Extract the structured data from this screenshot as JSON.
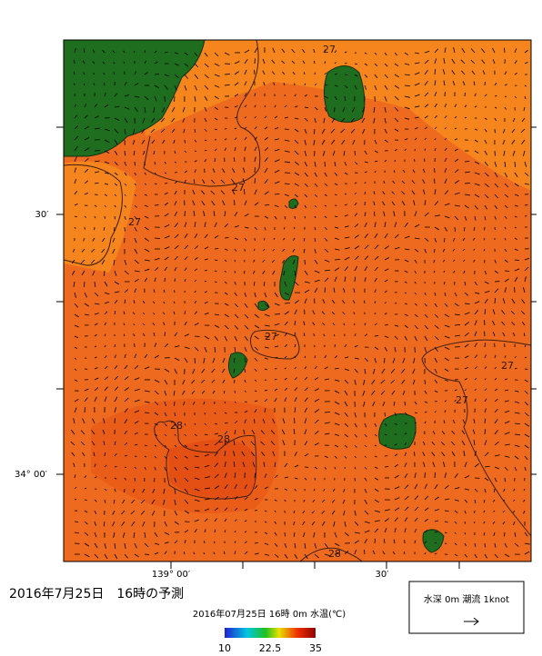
{
  "map": {
    "lat_labels": [
      "30′",
      "34° 00′"
    ],
    "lon_labels": [
      "139° 00′",
      "30′"
    ],
    "contour_labels": [
      "27",
      "27",
      "27",
      "27",
      "27",
      "27",
      "28",
      "28",
      "28"
    ]
  },
  "caption": "2016年7月25日　16時の予測",
  "colorbar": {
    "title": "2016年07月25日 16時 0m 水温(℃)",
    "ticks": [
      10,
      22.5,
      35
    ]
  },
  "legend": {
    "text": "水深 0m 潮流 1knot"
  }
}
